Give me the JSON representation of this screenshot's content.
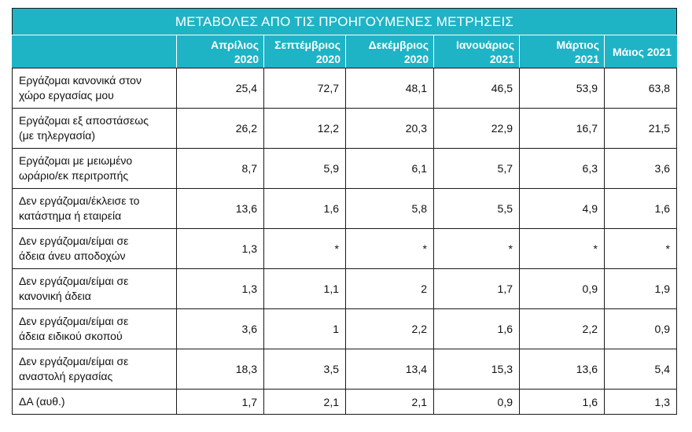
{
  "chart_data": {
    "type": "table",
    "title": "ΜΕΤΑΒΟΛΕΣ ΑΠΟ ΤΙΣ ΠΡΟΗΓΟΥΜΕΝΕΣ ΜΕΤΡΗΣΕΙΣ",
    "columns": [
      {
        "line1": "Απρίλιος",
        "line2": "2020"
      },
      {
        "line1": "Σεπτέμβριος",
        "line2": "2020"
      },
      {
        "line1": "Δεκέμβριος",
        "line2": "2020"
      },
      {
        "line1": "Ιανουάριος",
        "line2": "2021"
      },
      {
        "line1": "Μάρτιος",
        "line2": "2021"
      },
      {
        "line1": "Μάιος 2021",
        "line2": ""
      }
    ],
    "rows": [
      {
        "label1": "Εργάζομαι κανονικά στον",
        "label2": "χώρο εργασίας μου",
        "values": [
          "25,4",
          "72,7",
          "48,1",
          "46,5",
          "53,9",
          "63,8"
        ]
      },
      {
        "label1": "Εργάζομαι εξ αποστάσεως",
        "label2": "(με τηλεργασία)",
        "values": [
          "26,2",
          "12,2",
          "20,3",
          "22,9",
          "16,7",
          "21,5"
        ]
      },
      {
        "label1": "Εργάζομαι με μειωμένο",
        "label2": "ωράριο/εκ περιτροπής",
        "values": [
          "8,7",
          "5,9",
          "6,1",
          "5,7",
          "6,3",
          "3,6"
        ]
      },
      {
        "label1": "Δεν εργάζομαι/έκλεισε το",
        "label2": "κατάστημα ή εταιρεία",
        "values": [
          "13,6",
          "1,6",
          "5,8",
          "5,5",
          "4,9",
          "1,6"
        ]
      },
      {
        "label1": "Δεν εργάζομαι/είμαι σε",
        "label2": "άδεια άνευ αποδοχών",
        "values": [
          "1,3",
          "*",
          "*",
          "*",
          "*",
          "*"
        ]
      },
      {
        "label1": "Δεν εργάζομαι/είμαι σε",
        "label2": "κανονική άδεια",
        "values": [
          "1,3",
          "1,1",
          "2",
          "1,7",
          "0,9",
          "1,9"
        ]
      },
      {
        "label1": "Δεν εργάζομαι/είμαι σε",
        "label2": "άδεια ειδικού σκοπού",
        "values": [
          "3,6",
          "1",
          "2,2",
          "1,6",
          "2,2",
          "0,9"
        ]
      },
      {
        "label1": "Δεν εργάζομαι/είμαι σε",
        "label2": "αναστολή εργασίας",
        "values": [
          "18,3",
          "3,5",
          "13,4",
          "15,3",
          "13,6",
          "5,4"
        ]
      },
      {
        "label1": "ΔΑ (αυθ.)",
        "label2": "",
        "values": [
          "1,7",
          "2,1",
          "2,1",
          "0,9",
          "1,6",
          "1,3"
        ]
      }
    ]
  },
  "colors": {
    "header_bg": "#1fb3c6",
    "header_text": "#ffffff",
    "grid": "#1a1a1a"
  }
}
